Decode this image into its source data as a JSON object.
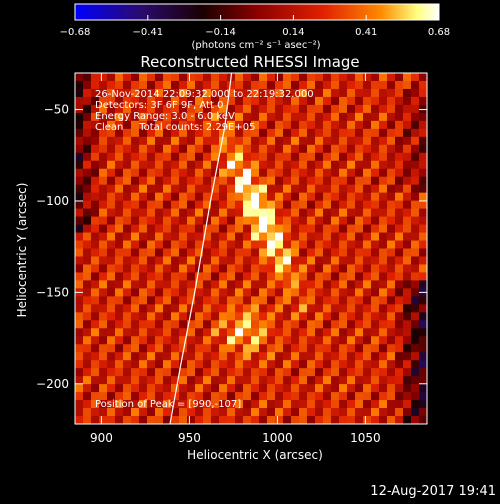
{
  "chart_data": {
    "type": "heatmap",
    "title": "Reconstructed RHESSI Image",
    "xlabel": "Heliocentric X (arcsec)",
    "ylabel": "Heliocentric Y (arcsec)",
    "xlim": [
      885,
      1085
    ],
    "ylim": [
      -222,
      -30
    ],
    "x_ticks": [
      900,
      950,
      1000,
      1050
    ],
    "y_ticks": [
      -50,
      -100,
      -150,
      -200
    ],
    "colorbar": {
      "label": "(photons cm⁻² s⁻¹ asec⁻²)",
      "ticks": [
        "-0.68",
        "-0.41",
        "-0.14",
        "0.14",
        "0.41",
        "0.68"
      ],
      "range": [
        -0.68,
        0.68
      ]
    },
    "annotations": {
      "time": "26-Nov-2014 22:09:32.000 to 22:19:32.000",
      "detectors": "Detectors: 3F 6F 9F, Att 0",
      "energy": "Energy Range: 3.0 - 6.0 keV",
      "method": "Clean     Total counts: 2.29E+05",
      "peak": "Position of Peak = [990,-107]"
    },
    "peak": {
      "x": 990,
      "y": -107
    },
    "limb_curve": [
      [
        939,
        -222
      ],
      [
        945,
        -190
      ],
      [
        953,
        -150
      ],
      [
        962,
        -100
      ],
      [
        970,
        -60
      ],
      [
        974,
        -30
      ]
    ],
    "colormap": [
      "#0000ff",
      "#2a0a6e",
      "#000000",
      "#8b0000",
      "#e02000",
      "#ff8a00",
      "#ffff80",
      "#ffffff"
    ]
  },
  "footer": {
    "date": "12-Aug-2017 19:41"
  }
}
